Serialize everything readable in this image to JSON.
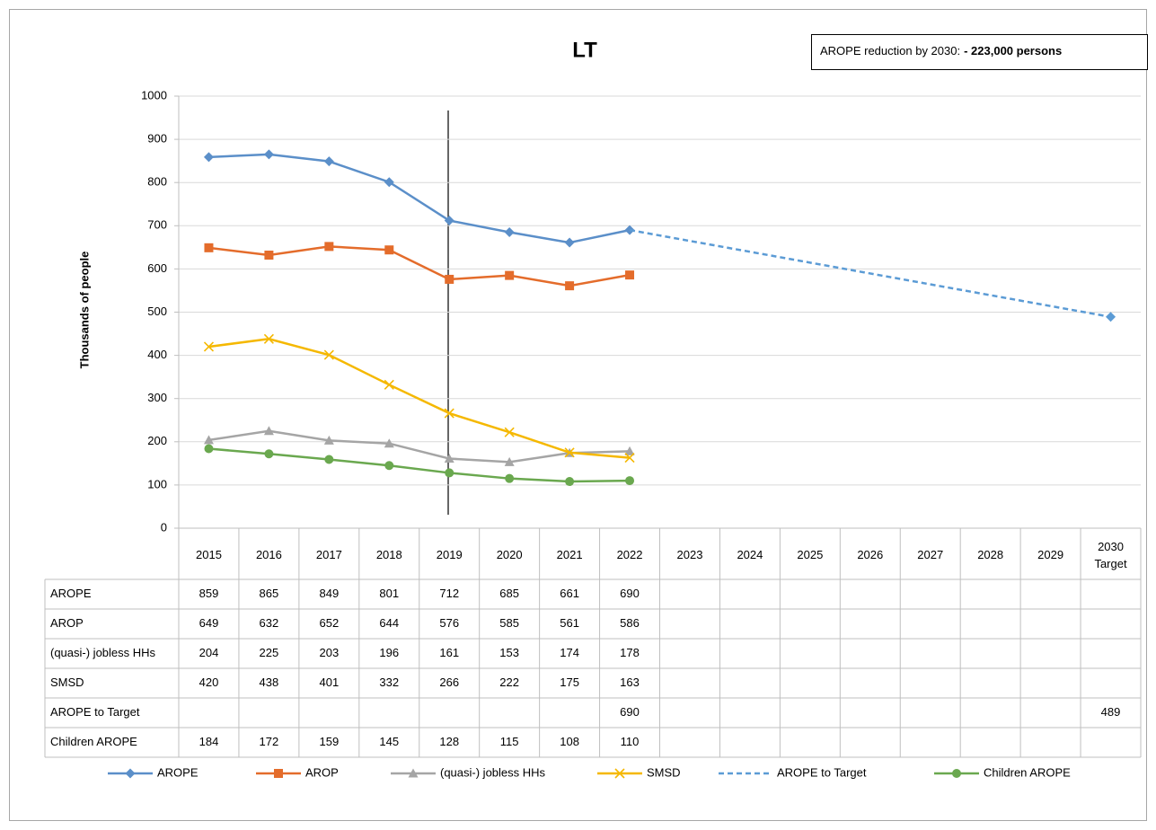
{
  "chart_data": {
    "type": "line",
    "title": "LT",
    "annotation": {
      "text": "AROPE reduction by 2030:",
      "bold": "- 223,000 persons"
    },
    "y_label": "Thousands  of people",
    "categories": [
      "2015",
      "2016",
      "2017",
      "2018",
      "2019",
      "2020",
      "2021",
      "2022",
      "2023",
      "2024",
      "2025",
      "2026",
      "2027",
      "2028",
      "2029",
      "2030 Target"
    ],
    "ylim": [
      0,
      1000
    ],
    "yticks": [
      0,
      100,
      200,
      300,
      400,
      500,
      600,
      700,
      800,
      900,
      1000
    ],
    "grid": true,
    "legend": "bottom",
    "series": [
      {
        "name": "AROPE",
        "color": "#5b8fc9",
        "marker": "diamond",
        "values": [
          859,
          865,
          849,
          801,
          712,
          685,
          661,
          690,
          null,
          null,
          null,
          null,
          null,
          null,
          null,
          null
        ]
      },
      {
        "name": "AROP",
        "color": "#e46c2b",
        "marker": "square",
        "values": [
          649,
          632,
          652,
          644,
          576,
          585,
          561,
          586,
          null,
          null,
          null,
          null,
          null,
          null,
          null,
          null
        ]
      },
      {
        "name": "(quasi-) jobless HHs",
        "color": "#a5a5a5",
        "marker": "triangle",
        "values": [
          204,
          225,
          203,
          196,
          161,
          153,
          174,
          178,
          null,
          null,
          null,
          null,
          null,
          null,
          null,
          null
        ]
      },
      {
        "name": "SMSD",
        "color": "#f5b800",
        "marker": "x",
        "values": [
          420,
          438,
          401,
          332,
          266,
          222,
          175,
          163,
          null,
          null,
          null,
          null,
          null,
          null,
          null,
          null
        ]
      },
      {
        "name": "AROPE to Target",
        "color": "#5b9bd5",
        "marker": "diamond",
        "dashed": true,
        "span_gaps": true,
        "values": [
          null,
          null,
          null,
          null,
          null,
          null,
          null,
          690,
          null,
          null,
          null,
          null,
          null,
          null,
          null,
          489
        ]
      },
      {
        "name": "Children AROPE",
        "color": "#6aa84f",
        "marker": "circle",
        "values": [
          184,
          172,
          159,
          145,
          128,
          115,
          108,
          110,
          null,
          null,
          null,
          null,
          null,
          null,
          null,
          null
        ]
      }
    ]
  }
}
